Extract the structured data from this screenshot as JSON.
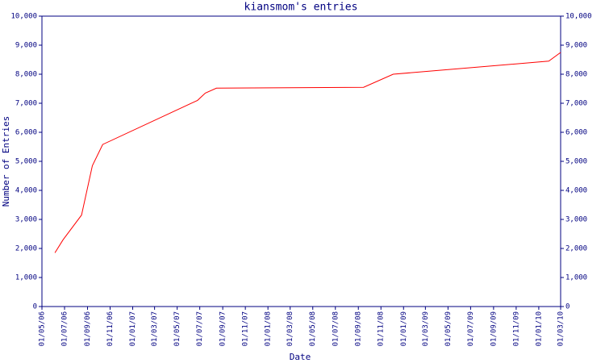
{
  "chart_data": {
    "type": "line",
    "title": "kiansmom's entries",
    "x_label": "Date",
    "y_label": "Number of Entries",
    "x": [
      "2006-06-05",
      "2006-06-27",
      "2006-08-16",
      "2006-09-14",
      "2006-10-12",
      "2007-06-25",
      "2007-07-16",
      "2007-08-15",
      "2008-09-15",
      "2008-12-04",
      "2010-01-28",
      "2010-03-01"
    ],
    "series": [
      {
        "name": "entries",
        "color": "#ff0000",
        "values": [
          1850,
          2300,
          3150,
          4850,
          5580,
          7100,
          7350,
          7520,
          7550,
          8000,
          8450,
          8750
        ]
      }
    ],
    "xlim": [
      "2006-05-01",
      "2010-03-01"
    ],
    "xticks": [
      {
        "value": "2006-05-01",
        "label": "01/05/06"
      },
      {
        "value": "2006-07-01",
        "label": "01/07/06"
      },
      {
        "value": "2006-09-01",
        "label": "01/09/06"
      },
      {
        "value": "2006-11-01",
        "label": "01/11/06"
      },
      {
        "value": "2007-01-01",
        "label": "01/01/07"
      },
      {
        "value": "2007-03-01",
        "label": "01/03/07"
      },
      {
        "value": "2007-05-01",
        "label": "01/05/07"
      },
      {
        "value": "2007-07-01",
        "label": "01/07/07"
      },
      {
        "value": "2007-09-01",
        "label": "01/09/07"
      },
      {
        "value": "2007-11-01",
        "label": "01/11/07"
      },
      {
        "value": "2008-01-01",
        "label": "01/01/08"
      },
      {
        "value": "2008-03-01",
        "label": "01/03/08"
      },
      {
        "value": "2008-05-01",
        "label": "01/05/08"
      },
      {
        "value": "2008-07-01",
        "label": "01/07/08"
      },
      {
        "value": "2008-09-01",
        "label": "01/09/08"
      },
      {
        "value": "2008-11-01",
        "label": "01/11/08"
      },
      {
        "value": "2009-01-01",
        "label": "01/01/09"
      },
      {
        "value": "2009-03-01",
        "label": "01/03/09"
      },
      {
        "value": "2009-05-01",
        "label": "01/05/09"
      },
      {
        "value": "2009-07-01",
        "label": "01/07/09"
      },
      {
        "value": "2009-09-01",
        "label": "01/09/09"
      },
      {
        "value": "2009-11-01",
        "label": "01/11/09"
      },
      {
        "value": "2010-01-01",
        "label": "01/01/10"
      },
      {
        "value": "2010-03-01",
        "label": "01/03/10"
      }
    ],
    "ylim": [
      0,
      10000
    ],
    "yticks": [
      0,
      {
        "value": 1000,
        "label": "1,000"
      },
      {
        "value": 2000,
        "label": "2,000"
      },
      {
        "value": 3000,
        "label": "3,000"
      },
      {
        "value": 4000,
        "label": "4,000"
      },
      {
        "value": 5000,
        "label": "5,000"
      },
      {
        "value": 6000,
        "label": "6,000"
      },
      {
        "value": 7000,
        "label": "7,000"
      },
      {
        "value": 8000,
        "label": "8,000"
      },
      {
        "value": 9000,
        "label": "9,000"
      },
      {
        "value": 10000,
        "label": "10,000"
      }
    ],
    "axis_color": "#000080"
  }
}
